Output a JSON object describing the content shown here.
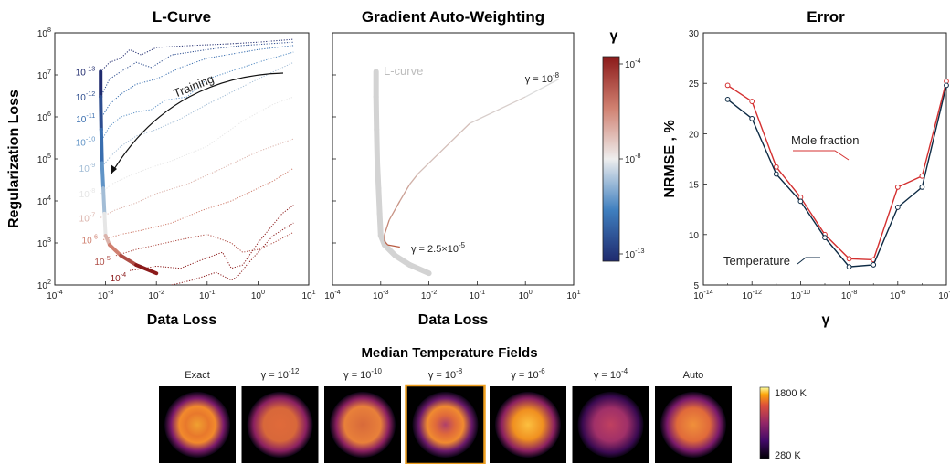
{
  "chart_data": [
    {
      "type": "line",
      "title": "L-Curve",
      "xlabel": "Data Loss",
      "ylabel": "Regularization Loss",
      "xscale": "log",
      "yscale": "log",
      "xlim": [
        0.0001,
        10
      ],
      "ylim": [
        100,
        100000000
      ],
      "x_ticks": [
        "10^-4",
        "10^-3",
        "10^-2",
        "10^-1",
        "10^0",
        "10^1"
      ],
      "y_ticks": [
        "10^2",
        "10^3",
        "10^4",
        "10^5",
        "10^6",
        "10^7",
        "10^8"
      ],
      "annotation": "Training",
      "lcurve_points": [
        [
          0.0008,
          12000000
        ],
        [
          0.0008,
          3000000
        ],
        [
          0.00082,
          500000
        ],
        [
          0.00085,
          80000
        ],
        [
          0.0009,
          20000
        ],
        [
          0.00095,
          5000
        ],
        [
          0.001,
          1500
        ],
        [
          0.0012,
          900
        ],
        [
          0.002,
          500
        ],
        [
          0.004,
          300
        ],
        [
          0.01,
          190
        ]
      ],
      "gamma_labels": [
        {
          "label": "10^-13",
          "x": 0.0008,
          "y": 12000000
        },
        {
          "label": "10^-12",
          "x": 0.0008,
          "y": 3000000
        },
        {
          "label": "10^-11",
          "x": 0.0008,
          "y": 900000
        },
        {
          "label": "10^-10",
          "x": 0.0008,
          "y": 250000
        },
        {
          "label": "10^-9",
          "x": 0.0008,
          "y": 60000
        },
        {
          "label": "10^-8",
          "x": 0.0008,
          "y": 15000
        },
        {
          "label": "10^-7",
          "x": 0.0008,
          "y": 4000
        },
        {
          "label": "10^-6",
          "x": 0.0009,
          "y": 1200
        },
        {
          "label": "10^-5",
          "x": 0.0016,
          "y": 500
        },
        {
          "label": "10^-4",
          "x": 0.003,
          "y": 220
        }
      ],
      "training_curves": [
        {
          "g": -13,
          "pts": [
            [
              0.0008,
              12000000
            ],
            [
              0.0012,
              20000000
            ],
            [
              0.002,
              25000000
            ],
            [
              0.003,
              40000000
            ],
            [
              0.005,
              30000000
            ],
            [
              0.01,
              45000000
            ],
            [
              0.05,
              50000000
            ],
            [
              0.3,
              55000000
            ],
            [
              1,
              60000000
            ],
            [
              5,
              70000000
            ]
          ]
        },
        {
          "g": -12,
          "pts": [
            [
              0.0008,
              3000000
            ],
            [
              0.0012,
              8000000
            ],
            [
              0.002,
              12000000
            ],
            [
              0.004,
              20000000
            ],
            [
              0.008,
              15000000
            ],
            [
              0.02,
              30000000
            ],
            [
              0.1,
              40000000
            ],
            [
              0.5,
              50000000
            ],
            [
              5,
              60000000
            ]
          ]
        },
        {
          "g": -11,
          "pts": [
            [
              0.0008,
              900000
            ],
            [
              0.0012,
              2000000
            ],
            [
              0.002,
              3500000
            ],
            [
              0.004,
              6000000
            ],
            [
              0.01,
              8000000
            ],
            [
              0.03,
              15000000
            ],
            [
              0.1,
              25000000
            ],
            [
              1,
              40000000
            ],
            [
              5,
              50000000
            ]
          ]
        },
        {
          "g": -10,
          "pts": [
            [
              0.0008,
              250000
            ],
            [
              0.0012,
              600000
            ],
            [
              0.002,
              1000000
            ],
            [
              0.004,
              1300000
            ],
            [
              0.008,
              1500000
            ],
            [
              0.015,
              2500000
            ],
            [
              0.04,
              3000000
            ],
            [
              0.1,
              8000000
            ],
            [
              1,
              20000000
            ],
            [
              5,
              35000000
            ]
          ]
        },
        {
          "g": -9,
          "pts": [
            [
              0.0008,
              60000
            ],
            [
              0.0013,
              120000
            ],
            [
              0.002,
              200000
            ],
            [
              0.004,
              350000
            ],
            [
              0.01,
              500000
            ],
            [
              0.03,
              900000
            ],
            [
              0.1,
              2000000
            ],
            [
              1,
              8000000
            ],
            [
              5,
              20000000
            ]
          ]
        },
        {
          "g": -8,
          "pts": [
            [
              0.0008,
              15000
            ],
            [
              0.0013,
              25000
            ],
            [
              0.003,
              40000
            ],
            [
              0.007,
              60000
            ],
            [
              0.02,
              90000
            ],
            [
              0.1,
              200000
            ],
            [
              0.5,
              800000
            ],
            [
              2,
              2000000
            ],
            [
              5,
              3000000
            ]
          ]
        },
        {
          "g": -7,
          "pts": [
            [
              0.0008,
              4000
            ],
            [
              0.0015,
              6000
            ],
            [
              0.004,
              9000
            ],
            [
              0.01,
              15000
            ],
            [
              0.04,
              25000
            ],
            [
              0.2,
              60000
            ],
            [
              1,
              150000
            ],
            [
              5,
              300000
            ]
          ]
        },
        {
          "g": -6,
          "pts": [
            [
              0.0009,
              1200
            ],
            [
              0.002,
              1600
            ],
            [
              0.005,
              2000
            ],
            [
              0.02,
              3000
            ],
            [
              0.08,
              6000
            ],
            [
              0.3,
              10000
            ],
            [
              2,
              30000
            ],
            [
              5,
              60000
            ]
          ]
        },
        {
          "g": -5,
          "pts": [
            [
              0.0016,
              500
            ],
            [
              0.004,
              700
            ],
            [
              0.01,
              900
            ],
            [
              0.03,
              1200
            ],
            [
              0.1,
              1600
            ],
            [
              0.3,
              1000
            ],
            [
              0.5,
              600
            ],
            [
              1,
              700
            ],
            [
              2,
              1000
            ],
            [
              5,
              1800
            ]
          ]
        },
        {
          "g": -4,
          "pts": [
            [
              0.003,
              220
            ],
            [
              0.006,
              250
            ],
            [
              0.01,
              280
            ],
            [
              0.03,
              250
            ],
            [
              0.08,
              400
            ],
            [
              0.2,
              600
            ],
            [
              0.3,
              250
            ],
            [
              0.5,
              300
            ],
            [
              1,
              1000
            ],
            [
              3,
              5000
            ],
            [
              5,
              8000
            ]
          ]
        },
        {
          "g": -3.5,
          "pts": [
            [
              0.02,
              100
            ],
            [
              0.05,
              130
            ],
            [
              0.15,
              200
            ],
            [
              0.3,
              130
            ],
            [
              0.4,
              160
            ],
            [
              0.6,
              300
            ],
            [
              2,
              1500
            ],
            [
              5,
              3000
            ]
          ]
        }
      ]
    },
    {
      "type": "line",
      "title": "Gradient Auto-Weighting",
      "xlabel": "Data Loss",
      "xscale": "log",
      "yscale": "log",
      "xlim": [
        0.0001,
        10
      ],
      "ylim": [
        100,
        100000000
      ],
      "x_ticks": [
        "10^-4",
        "10^-3",
        "10^-2",
        "10^-1",
        "10^0",
        "10^1"
      ],
      "lcurve_label": "L-curve",
      "label_start": "γ = 10^-8",
      "label_end": "γ = 2.5×10^-5",
      "lcurve_points": [
        [
          0.0008,
          12000000
        ],
        [
          0.0008,
          3000000
        ],
        [
          0.00082,
          500000
        ],
        [
          0.00085,
          80000
        ],
        [
          0.0009,
          20000
        ],
        [
          0.00095,
          5000
        ],
        [
          0.001,
          1500
        ],
        [
          0.0012,
          900
        ],
        [
          0.002,
          500
        ],
        [
          0.004,
          300
        ],
        [
          0.01,
          190
        ]
      ],
      "auto_path": [
        [
          5,
          8000000
        ],
        [
          1,
          3000000
        ],
        [
          0.07,
          700000
        ],
        [
          0.006,
          45000
        ],
        [
          0.004,
          25000
        ],
        [
          0.0025,
          10000
        ],
        [
          0.0015,
          3500
        ],
        [
          0.0012,
          1600
        ],
        [
          0.0012,
          1100
        ],
        [
          0.0014,
          900
        ],
        [
          0.0025,
          800
        ]
      ]
    },
    {
      "type": "line",
      "title": "Error",
      "xlabel": "γ",
      "ylabel": "NRMSE , %",
      "xscale": "log",
      "xlim": [
        -14,
        -4
      ],
      "ylim": [
        5,
        30
      ],
      "x_ticks": [
        "10^-14",
        "10^-12",
        "10^-10",
        "10^-8",
        "10^-6",
        "10^-4"
      ],
      "y_ticks": [
        "5",
        "10",
        "15",
        "20",
        "25",
        "30"
      ],
      "series": [
        {
          "name": "Mole fraction",
          "color": "#d43030",
          "x": [
            -13,
            -12,
            -11,
            -10,
            -9,
            -8,
            -7,
            -6,
            -5,
            -4
          ],
          "y": [
            24.8,
            23.2,
            16.7,
            13.7,
            10.0,
            7.6,
            7.5,
            14.7,
            15.8,
            25.2
          ]
        },
        {
          "name": "Temperature",
          "color": "#0d2a44",
          "x": [
            -13,
            -12,
            -11,
            -10,
            -9,
            -8,
            -7,
            -6,
            -5,
            -4
          ],
          "y": [
            23.4,
            21.5,
            16.0,
            13.3,
            9.7,
            6.8,
            7.0,
            12.7,
            14.7,
            24.8
          ]
        }
      ]
    }
  ],
  "colorbar": {
    "title": "γ",
    "ticks": [
      "10^-4",
      "10^-8",
      "10^-13"
    ]
  },
  "fields": {
    "title": "Median Temperature Fields",
    "labels": [
      "Exact",
      "γ = 10^-12",
      "γ = 10^-10",
      "γ = 10^-8",
      "γ = 10^-6",
      "γ = 10^-4",
      "Auto"
    ],
    "highlight_index": 3,
    "colorbar_max": "1800 K",
    "colorbar_min": "280 K",
    "highlight_color": "#f0a020"
  }
}
